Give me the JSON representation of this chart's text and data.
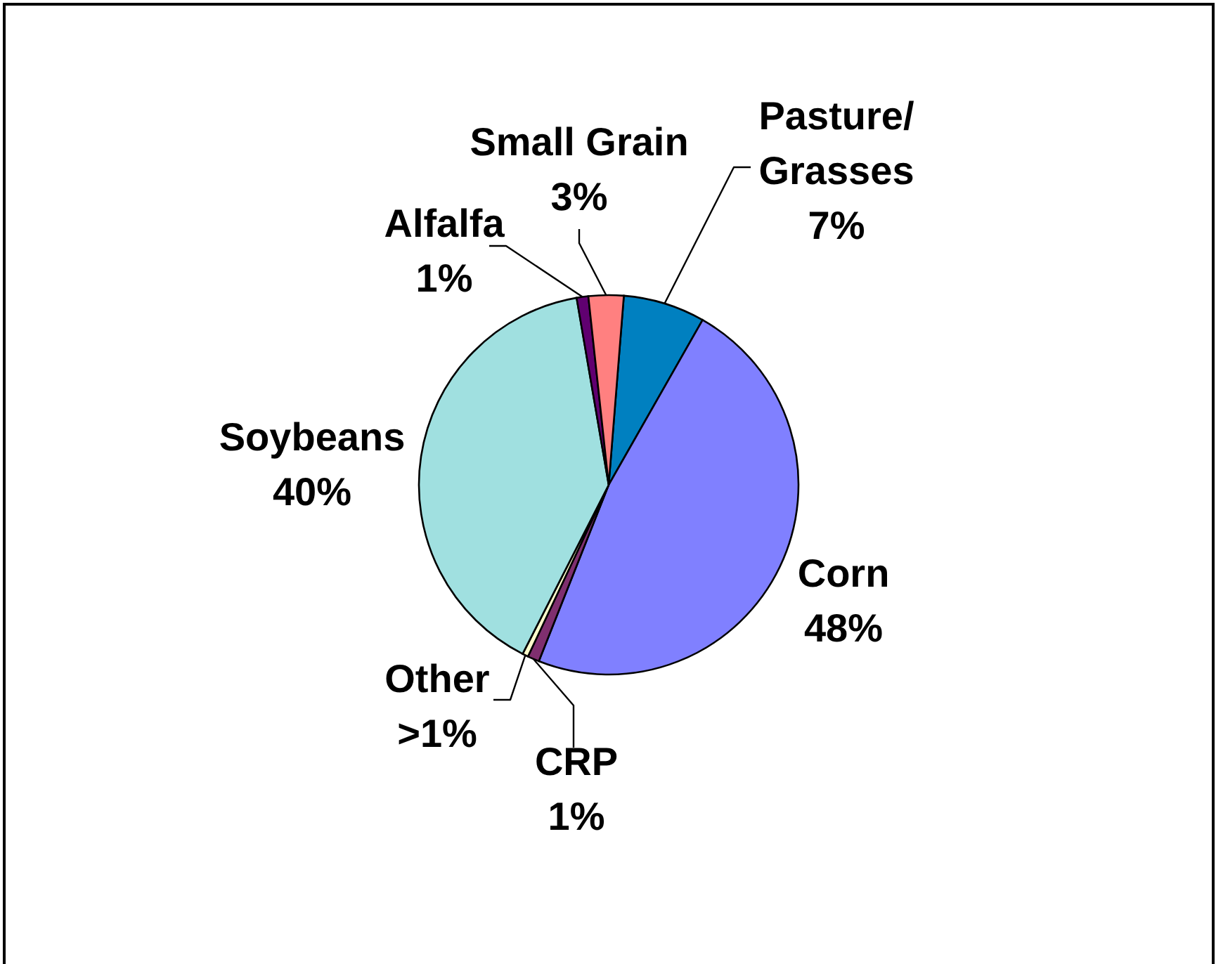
{
  "chart_data": {
    "type": "pie",
    "categories": [
      "Pasture/Grasses",
      "Corn",
      "CRP",
      "Other",
      "Soybeans",
      "Alfalfa",
      "Small Grain"
    ],
    "values": [
      7,
      48,
      1,
      0.5,
      40,
      1,
      3
    ],
    "colors": [
      "#0080c0",
      "#8080ff",
      "#7f2f6f",
      "#ffffcc",
      "#a0e0e0",
      "#600070",
      "#ff8080"
    ],
    "value_labels": [
      "7%",
      "48%",
      "1%",
      ">1%",
      "40%",
      "1%",
      "3%"
    ]
  }
}
